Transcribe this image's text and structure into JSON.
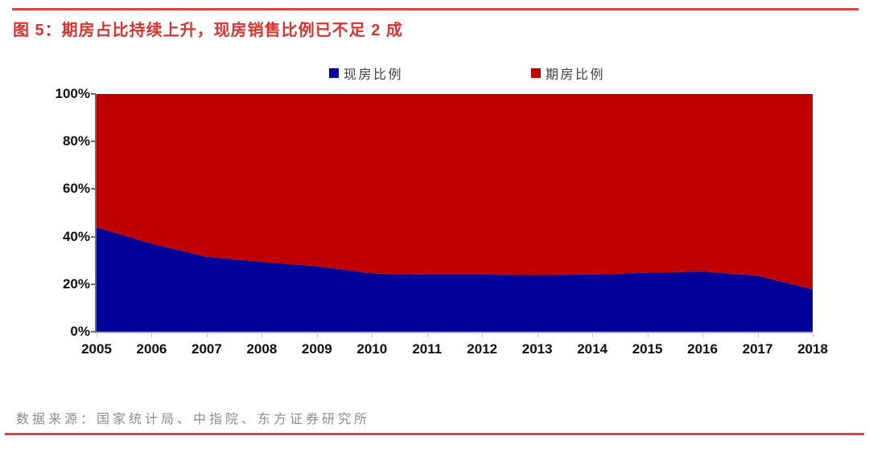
{
  "figure": {
    "title": "图 5：期房占比持续上升，现房销售比例已不足 2 成",
    "source": "数据来源：国家统计局、中指院、东方证券研究所"
  },
  "accent": {
    "title_red": "#dd3330",
    "rule_red": "#e0433e"
  },
  "chart_data": {
    "type": "area",
    "stacked": true,
    "title": "",
    "xlabel": "",
    "ylabel": "",
    "categories": [
      "2005",
      "2006",
      "2007",
      "2008",
      "2009",
      "2010",
      "2011",
      "2012",
      "2013",
      "2014",
      "2015",
      "2016",
      "2017",
      "2018"
    ],
    "series": [
      {
        "name": "现房比例",
        "color": "#000099",
        "values": [
          43.9,
          37.0,
          31.5,
          29.3,
          27.5,
          24.5,
          24.0,
          24.0,
          23.8,
          24.0,
          24.8,
          25.3,
          23.5,
          17.8
        ]
      },
      {
        "name": "期房比例",
        "color": "#c00000",
        "values": [
          56.1,
          63.0,
          68.5,
          70.7,
          72.5,
          75.5,
          76.0,
          76.0,
          76.2,
          76.0,
          75.2,
          74.7,
          76.5,
          82.2
        ]
      }
    ],
    "ylim": [
      0,
      100
    ],
    "yticks": [
      "0%",
      "20%",
      "40%",
      "60%",
      "80%",
      "100%"
    ],
    "grid": false,
    "legend_position": "top"
  }
}
